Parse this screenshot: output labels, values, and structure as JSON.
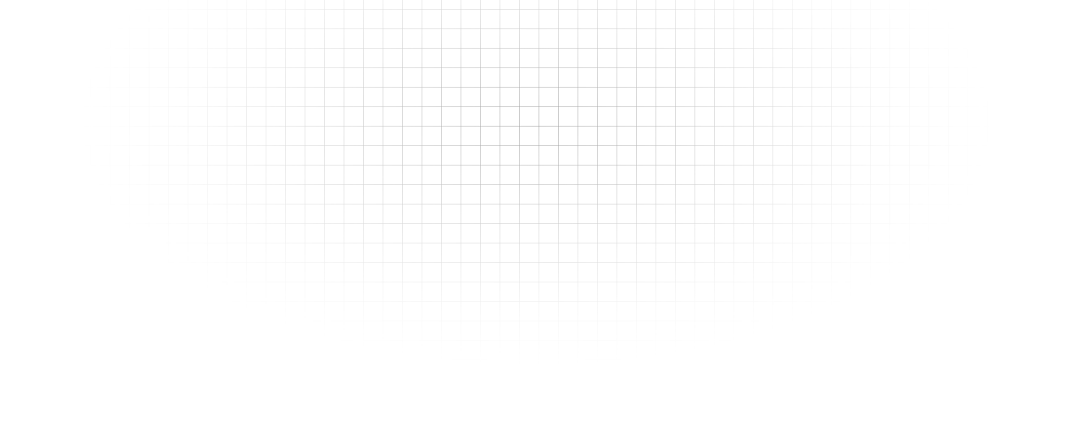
{
  "page": {
    "background": "#ffffff",
    "grid_line_color": "#787878"
  }
}
